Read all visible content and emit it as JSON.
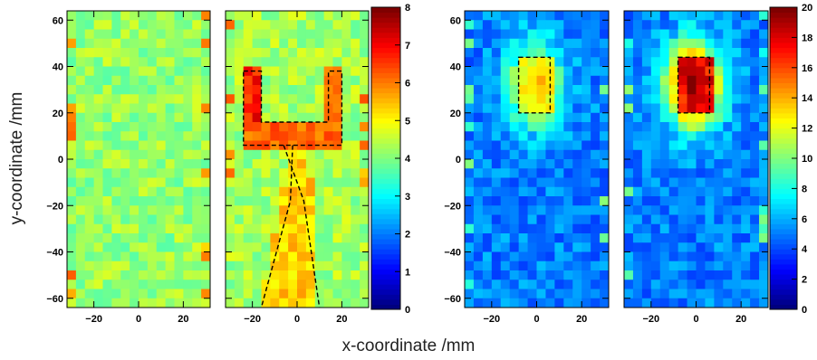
{
  "figure": {
    "xlabel": "x-coordinate /mm",
    "ylabel": "y-coordinate /mm"
  },
  "chart_data": [
    {
      "type": "heatmap",
      "xlim": [
        -32,
        32
      ],
      "ylim": [
        -64,
        64
      ],
      "x_ticks": [
        "−20",
        "0",
        "20"
      ],
      "y_ticks": [
        "−60",
        "−40",
        "−20",
        "0",
        "20",
        "40",
        "60"
      ],
      "bins": [
        16,
        32
      ],
      "zlim": [
        0,
        8
      ],
      "description": "roughly uniform map, values ~3.5–5",
      "z_base": 4.2,
      "hotspot": null,
      "overlay": "none"
    },
    {
      "type": "heatmap",
      "xlim": [
        -32,
        32
      ],
      "ylim": [
        -64,
        64
      ],
      "x_ticks": [
        "−20",
        "0",
        "20"
      ],
      "y_ticks": [],
      "bins": [
        16,
        32
      ],
      "zlim": [
        0,
        8
      ],
      "z_base": 4.3,
      "hotspot": null,
      "overlay": "tuning-fork",
      "overlay_outline": [
        [
          -24,
          38
        ],
        [
          -16,
          38
        ],
        [
          -16,
          16
        ],
        [
          14,
          16
        ],
        [
          14,
          38
        ],
        [
          20,
          38
        ],
        [
          20,
          6
        ],
        [
          -24,
          6
        ]
      ],
      "overlay_stem_left": [
        [
          -2,
          6
        ],
        [
          -3,
          -18
        ],
        [
          -16,
          -64
        ]
      ],
      "overlay_stem_right": [
        [
          -6,
          6
        ],
        [
          3,
          -18
        ],
        [
          10,
          -64
        ]
      ]
    },
    {
      "type": "heatmap",
      "xlim": [
        -32,
        32
      ],
      "ylim": [
        -64,
        64
      ],
      "x_ticks": [
        "−20",
        "0",
        "20"
      ],
      "y_ticks": [
        "−60",
        "−40",
        "−20",
        "0",
        "20",
        "40",
        "60"
      ],
      "bins": [
        16,
        32
      ],
      "zlim": [
        0,
        20
      ],
      "z_base": 5.0,
      "hotspot": {
        "x": [
          -8,
          6
        ],
        "y": [
          20,
          44
        ],
        "peak": 14
      },
      "overlay": "rect",
      "overlay_rect": {
        "x": [
          -8,
          6
        ],
        "y": [
          20,
          44
        ]
      }
    },
    {
      "type": "heatmap",
      "xlim": [
        -32,
        32
      ],
      "ylim": [
        -64,
        64
      ],
      "x_ticks": [
        "−20",
        "0",
        "20"
      ],
      "y_ticks": [],
      "bins": [
        16,
        32
      ],
      "zlim": [
        0,
        20
      ],
      "z_base": 5.0,
      "hotspot": {
        "x": [
          -8,
          6
        ],
        "y": [
          20,
          44
        ],
        "peak": 20
      },
      "overlay": "rect",
      "overlay_rect": {
        "x": [
          -8,
          6
        ],
        "y": [
          20,
          44
        ]
      }
    }
  ],
  "colorbars": [
    {
      "min": 0,
      "max": 8,
      "ticks": [
        "0",
        "1",
        "2",
        "3",
        "4",
        "5",
        "6",
        "7",
        "8"
      ]
    },
    {
      "min": 0,
      "max": 20,
      "ticks": [
        "0",
        "2",
        "4",
        "6",
        "8",
        "10",
        "12",
        "14",
        "16",
        "18",
        "20"
      ]
    }
  ],
  "colors": {
    "colormap": [
      "#00007f",
      "#0000ff",
      "#007fff",
      "#00ffff",
      "#7fff7f",
      "#ffff00",
      "#ff7f00",
      "#ff0000",
      "#7f0000"
    ],
    "overlay_line": "#000000",
    "frame": "#000000"
  }
}
